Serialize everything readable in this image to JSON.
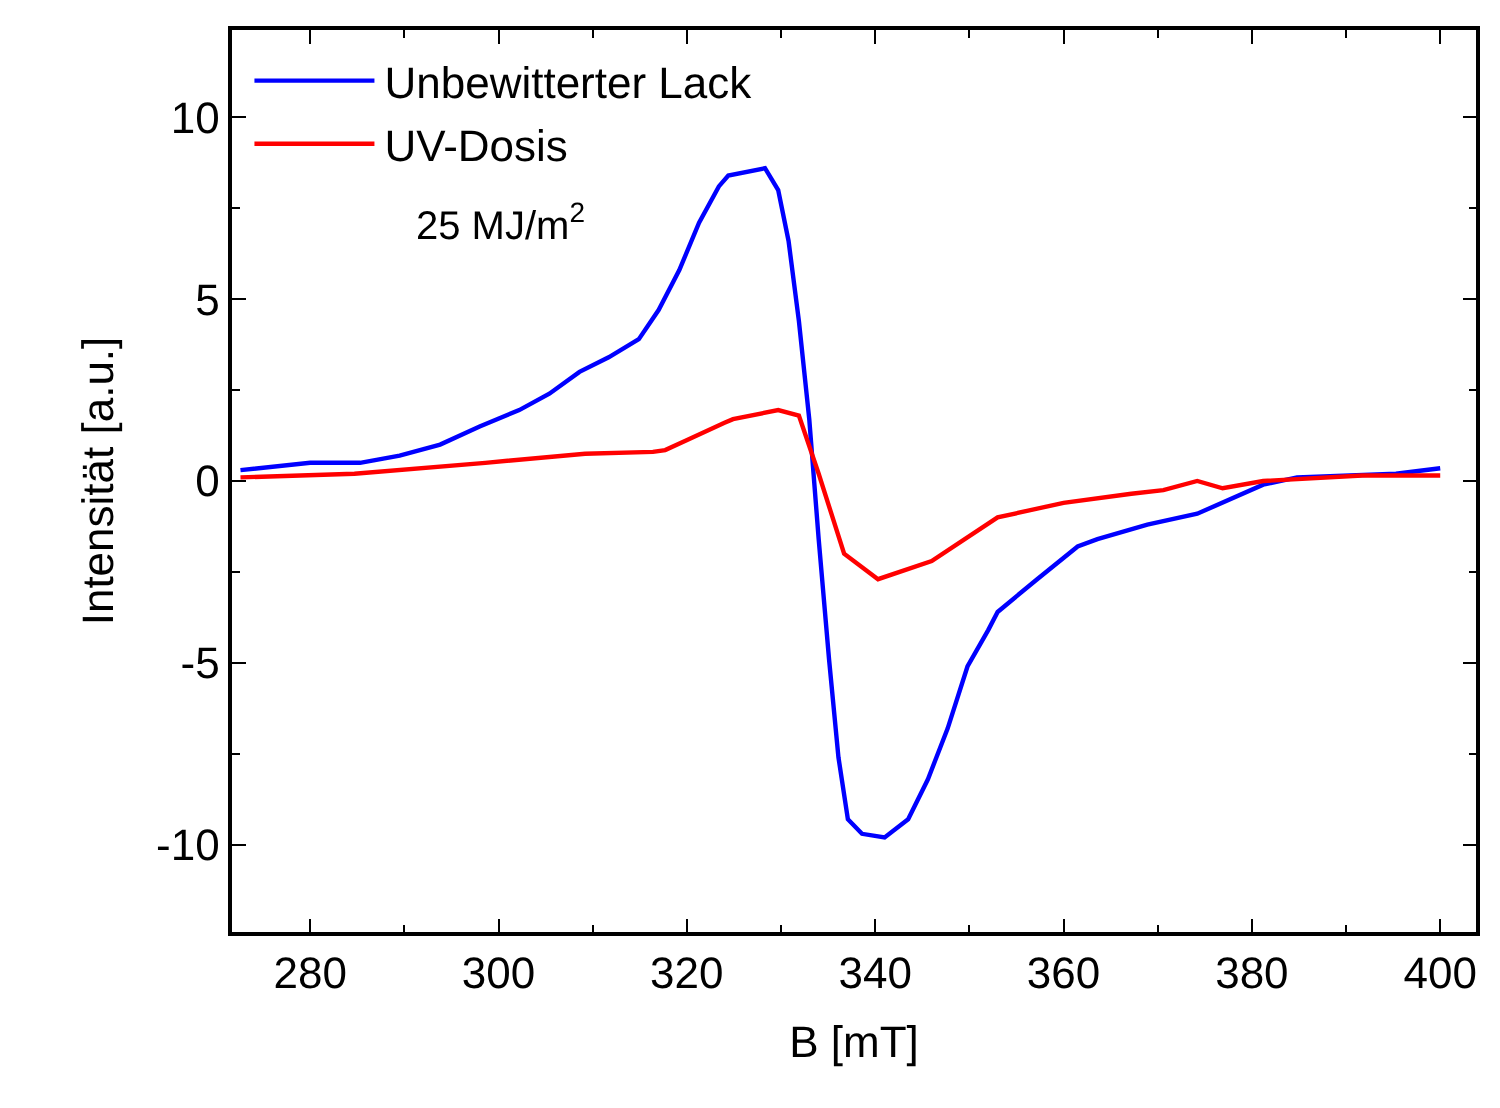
{
  "chart_data": {
    "type": "line",
    "xlabel": "B [mT]",
    "ylabel": "Intensität [a.u.]",
    "xlim": [
      271.7,
      403.8
    ],
    "ylim": [
      -12.4,
      12.4
    ],
    "xticks": [
      280,
      300,
      320,
      340,
      360,
      380,
      400
    ],
    "yticks": [
      -10,
      -5,
      0,
      5,
      10
    ],
    "grid": false,
    "legend": "top left",
    "marker": "none",
    "line_style": "solid",
    "annotations": [
      "25 MJ/m$^{2}$"
    ],
    "series": [
      {
        "name": "Unbewitterter Lack",
        "color": "#0000ff",
        "x": [
          272.6,
          280,
          285.3,
          289.5,
          293.8,
          298,
          302.2,
          305.4,
          308.6,
          311.7,
          314.9,
          317,
          319.2,
          321.3,
          323.4,
          324.4,
          328.3,
          329.7,
          330.8,
          331.9,
          333,
          334,
          335.1,
          336.1,
          337.1,
          338.6,
          341,
          343.5,
          345.6,
          347.7,
          349.8,
          352,
          353,
          357.2,
          361.5,
          363.6,
          368.9,
          374.2,
          381.2,
          384.8,
          395.3,
          400
        ],
        "values": [
          0.3,
          0.5,
          0.5,
          0.7,
          1.0,
          1.5,
          1.95,
          2.4,
          3.0,
          3.4,
          3.9,
          4.7,
          5.8,
          7.1,
          8.1,
          8.4,
          8.6,
          8.0,
          6.6,
          4.4,
          1.7,
          -1.6,
          -4.9,
          -7.6,
          -9.3,
          -9.7,
          -9.8,
          -9.3,
          -8.2,
          -6.8,
          -5.1,
          -4.1,
          -3.6,
          -2.7,
          -1.8,
          -1.6,
          -1.2,
          -0.9,
          -0.1,
          0.1,
          0.2,
          0.35
        ]
      },
      {
        "name": "UV-Dosis",
        "color": "#ff0000",
        "x": [
          272.6,
          284.7,
          298.6,
          309.2,
          316.4,
          317.7,
          319.8,
          324,
          324.9,
          329.7,
          331.9,
          334,
          336.7,
          340.3,
          346,
          353,
          360,
          367.2,
          370.6,
          374.2,
          376.9,
          381.2,
          391.7,
          400
        ],
        "values": [
          0.1,
          0.2,
          0.5,
          0.75,
          0.8,
          0.85,
          1.1,
          1.6,
          1.7,
          1.95,
          1.8,
          0.2,
          -2.0,
          -2.7,
          -2.2,
          -1.0,
          -0.6,
          -0.35,
          -0.25,
          0,
          -0.2,
          0,
          0.15,
          0.15
        ]
      }
    ]
  }
}
